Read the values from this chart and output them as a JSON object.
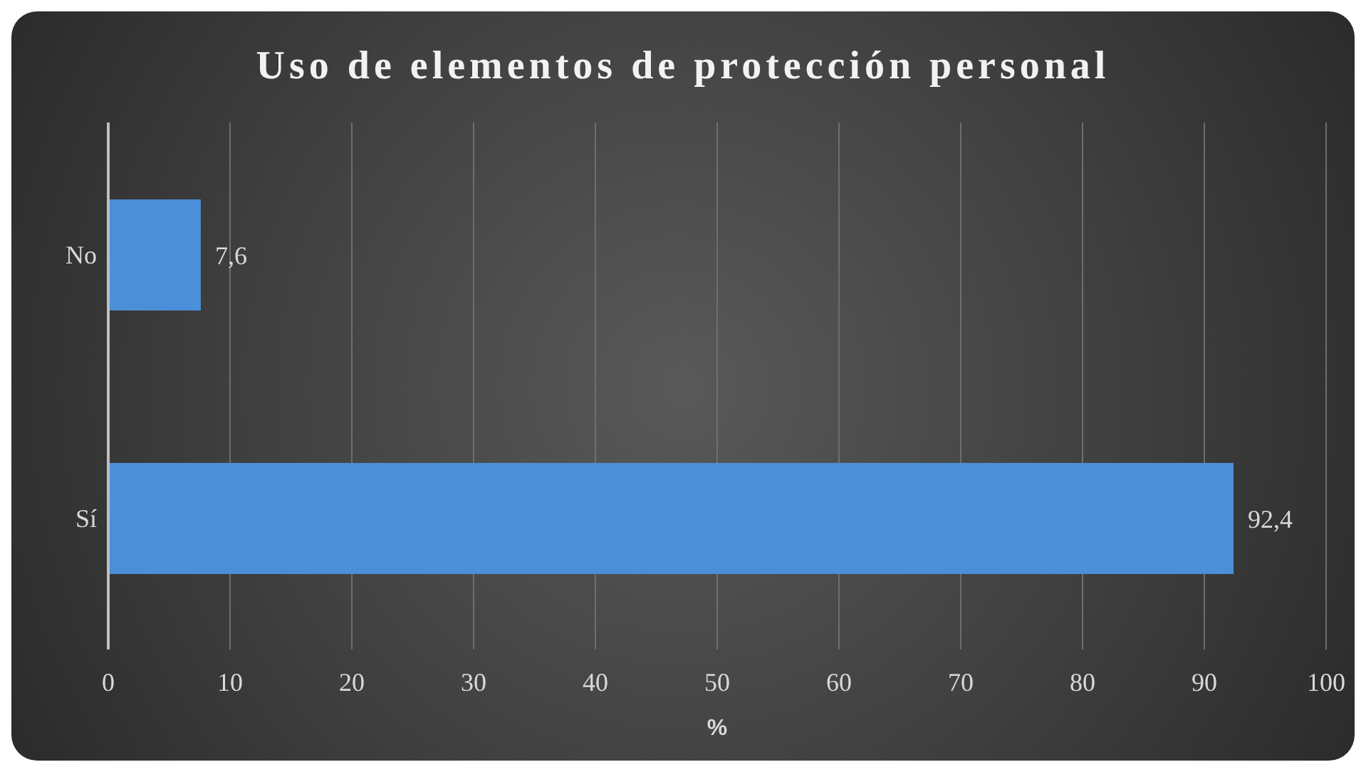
{
  "chart_data": {
    "type": "bar",
    "orientation": "horizontal",
    "title": "Uso de elementos de protección personal",
    "categories": [
      "No",
      "Sí"
    ],
    "values": [
      7.6,
      92.4
    ],
    "value_labels": [
      "7,6",
      "92,4"
    ],
    "color": "#4a8fd8",
    "xlim": [
      0,
      100
    ],
    "xticks": [
      0,
      10,
      20,
      30,
      40,
      50,
      60,
      70,
      80,
      90,
      100
    ],
    "xlabel": "%",
    "grid": "x"
  }
}
